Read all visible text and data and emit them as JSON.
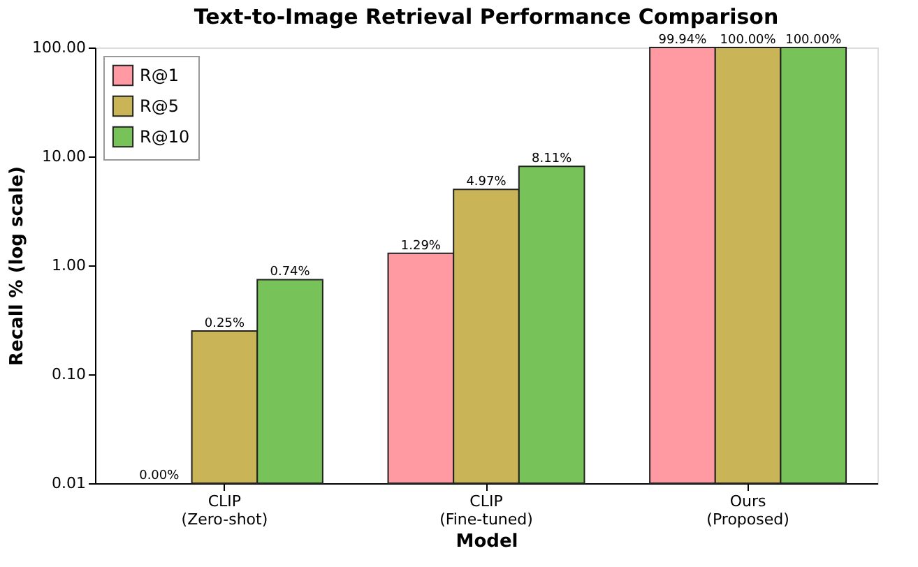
{
  "chart_data": {
    "type": "bar",
    "title": "Text-to-Image Retrieval Performance Comparison",
    "xlabel": "Model",
    "ylabel": "Recall % (log scale)",
    "categories": [
      "CLIP\n(Zero-shot)",
      "CLIP\n(Fine-tuned)",
      "Ours\n(Proposed)"
    ],
    "series": [
      {
        "name": "R@1",
        "color": "#ff9aa2",
        "values": [
          null,
          1.29,
          99.94
        ],
        "value_labels": [
          null,
          "1.29%",
          "99.94%"
        ]
      },
      {
        "name": "R@5",
        "color": "#c9b458",
        "values": [
          0.25,
          4.97,
          100
        ],
        "value_labels": [
          "0.25%",
          "4.97%",
          "100.00%"
        ]
      },
      {
        "name": "R@10",
        "color": "#77c35a",
        "values": [
          0.74,
          8.11,
          100
        ],
        "value_labels": [
          "0.74%",
          "8.11%",
          "100.00%"
        ]
      }
    ],
    "log": "y",
    "ylim": [
      0.01,
      100
    ],
    "yticks": [
      {
        "value": 0.01,
        "label": "0.01"
      },
      {
        "value": 0.1,
        "label": "0.10"
      },
      {
        "value": 1,
        "label": "1.00"
      },
      {
        "value": 10,
        "label": "10.00"
      },
      {
        "value": 100,
        "label": "100.00"
      }
    ],
    "annotations": [
      "0.00%"
    ],
    "legend": "top left",
    "grid": false
  }
}
